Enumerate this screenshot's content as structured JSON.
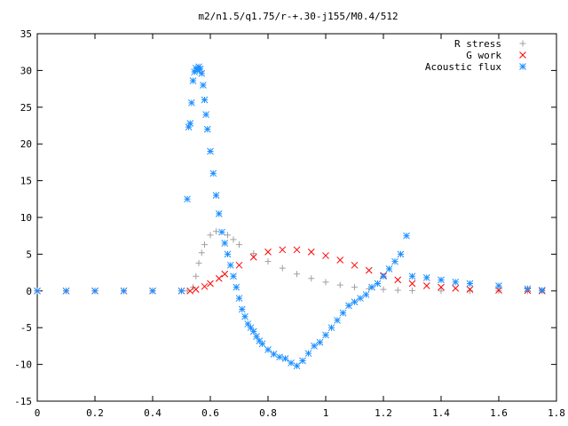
{
  "chart_data": {
    "type": "scatter",
    "title": "m2/n1.5/q1.75/r-+.30-j155/M0.4/512",
    "xlabel": "",
    "ylabel": "",
    "xlim": [
      0,
      1.8
    ],
    "ylim": [
      -15,
      35
    ],
    "grid": false,
    "legend_position": "top-right",
    "x_ticks": [
      0,
      0.2,
      0.4,
      0.6,
      0.8,
      1.0,
      1.2,
      1.4,
      1.6,
      1.8
    ],
    "x_tick_labels": [
      "0",
      "0.2",
      "0.4",
      "0.6",
      "0.8",
      "1",
      "1.2",
      "1.4",
      "1.6",
      "1.8"
    ],
    "y_ticks": [
      -15,
      -10,
      -5,
      0,
      5,
      10,
      15,
      20,
      25,
      30,
      35
    ],
    "y_tick_labels": [
      "-15",
      "-10",
      "-5",
      "0",
      "5",
      "10",
      "15",
      "20",
      "25",
      "30",
      "35"
    ],
    "series": [
      {
        "name": "R stress",
        "color": "#a0a0a0",
        "marker": "plus",
        "x": [
          0,
          0.1,
          0.2,
          0.3,
          0.4,
          0.5,
          0.52,
          0.54,
          0.55,
          0.56,
          0.57,
          0.58,
          0.6,
          0.62,
          0.64,
          0.66,
          0.68,
          0.7,
          0.75,
          0.8,
          0.85,
          0.9,
          0.95,
          1.0,
          1.05,
          1.1,
          1.15,
          1.2,
          1.25,
          1.3,
          1.4,
          1.5,
          1.6,
          1.7,
          1.75
        ],
        "y": [
          0,
          0,
          0,
          0,
          0,
          0,
          0,
          0.5,
          2.0,
          3.8,
          5.2,
          6.3,
          7.6,
          8.1,
          8.0,
          7.6,
          7.0,
          6.3,
          5.1,
          4.0,
          3.1,
          2.3,
          1.7,
          1.2,
          0.8,
          0.5,
          0.3,
          0.2,
          0.1,
          0.05,
          0,
          0,
          0,
          0,
          0
        ]
      },
      {
        "name": "G work",
        "color": "#ff0000",
        "marker": "cross",
        "x": [
          0,
          0.1,
          0.2,
          0.3,
          0.4,
          0.5,
          0.53,
          0.55,
          0.58,
          0.6,
          0.63,
          0.65,
          0.7,
          0.75,
          0.8,
          0.85,
          0.9,
          0.95,
          1.0,
          1.05,
          1.1,
          1.15,
          1.2,
          1.25,
          1.3,
          1.35,
          1.4,
          1.45,
          1.5,
          1.6,
          1.7,
          1.75
        ],
        "y": [
          0,
          0,
          0,
          0,
          0,
          0,
          0,
          0.2,
          0.6,
          1.0,
          1.7,
          2.3,
          3.5,
          4.6,
          5.3,
          5.6,
          5.6,
          5.3,
          4.8,
          4.2,
          3.5,
          2.8,
          2.1,
          1.5,
          1.0,
          0.7,
          0.5,
          0.35,
          0.2,
          0.1,
          0.05,
          0
        ]
      },
      {
        "name": "Acoustic flux",
        "color": "#1e90ff",
        "marker": "star",
        "x": [
          0,
          0.1,
          0.2,
          0.3,
          0.4,
          0.5,
          0.52,
          0.525,
          0.53,
          0.535,
          0.54,
          0.545,
          0.55,
          0.555,
          0.56,
          0.565,
          0.57,
          0.575,
          0.58,
          0.585,
          0.59,
          0.6,
          0.61,
          0.62,
          0.63,
          0.64,
          0.65,
          0.66,
          0.67,
          0.68,
          0.69,
          0.7,
          0.71,
          0.72,
          0.73,
          0.74,
          0.75,
          0.76,
          0.77,
          0.78,
          0.8,
          0.82,
          0.84,
          0.86,
          0.88,
          0.9,
          0.92,
          0.94,
          0.96,
          0.98,
          1.0,
          1.02,
          1.04,
          1.06,
          1.08,
          1.1,
          1.12,
          1.14,
          1.16,
          1.18,
          1.2,
          1.22,
          1.24,
          1.26,
          1.28,
          1.3,
          1.35,
          1.4,
          1.45,
          1.5,
          1.6,
          1.7,
          1.75
        ],
        "y": [
          0,
          0,
          0,
          0,
          0,
          0,
          12.5,
          22.3,
          22.8,
          25.6,
          28.6,
          29.8,
          30.3,
          30.0,
          30.5,
          30.2,
          29.6,
          28.0,
          26.0,
          24.0,
          22.0,
          19.0,
          16.0,
          13.0,
          10.5,
          8.0,
          6.5,
          5.0,
          3.5,
          2.0,
          0.5,
          -1.0,
          -2.5,
          -3.5,
          -4.5,
          -5.0,
          -5.5,
          -6.2,
          -6.8,
          -7.2,
          -8.0,
          -8.6,
          -9.0,
          -9.2,
          -9.8,
          -10.2,
          -9.5,
          -8.5,
          -7.5,
          -7.0,
          -6.0,
          -5.0,
          -4.0,
          -3.0,
          -2.0,
          -1.5,
          -1.0,
          -0.5,
          0.5,
          1.0,
          2.0,
          3.0,
          4.0,
          5.0,
          7.5,
          2.0,
          1.8,
          1.5,
          1.2,
          1.0,
          0.7,
          0.3,
          0.1
        ]
      }
    ]
  }
}
